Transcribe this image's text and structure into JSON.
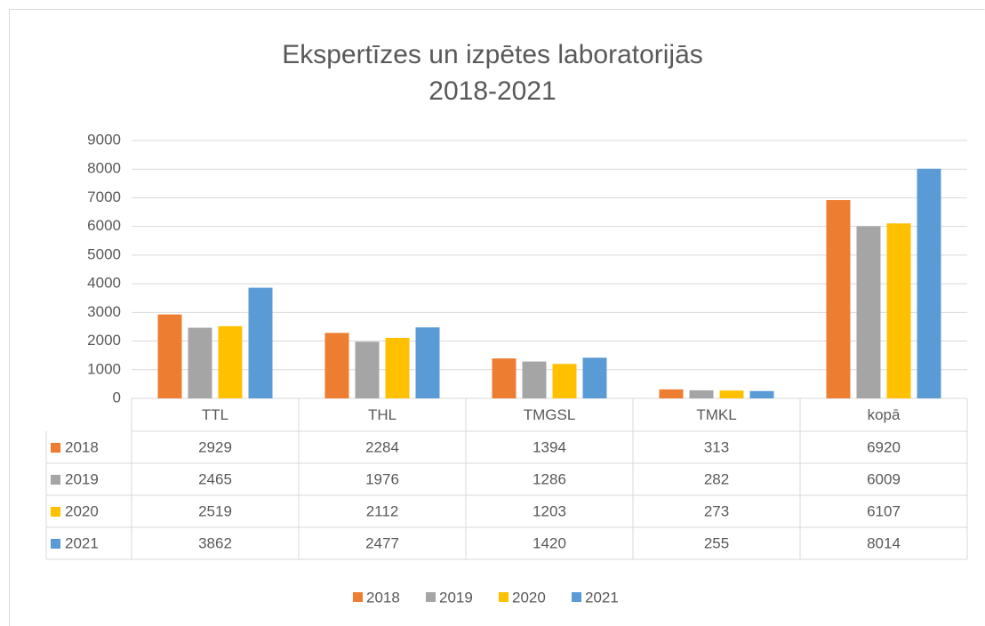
{
  "chart_data": {
    "type": "bar",
    "title": [
      "Ekspertīzes un izpētes laboratorijās",
      "2018-2021"
    ],
    "categories": [
      "TTL",
      "THL",
      "TMGSL",
      "TMKL",
      "kopā"
    ],
    "series": [
      {
        "name": "2018",
        "color": "#ed7d31",
        "values": [
          2929,
          2284,
          1394,
          313,
          6920
        ]
      },
      {
        "name": "2019",
        "color": "#a5a5a5",
        "values": [
          2465,
          1976,
          1286,
          282,
          6009
        ]
      },
      {
        "name": "2020",
        "color": "#ffc000",
        "values": [
          2519,
          2112,
          1203,
          273,
          6107
        ]
      },
      {
        "name": "2021",
        "color": "#5b9bd5",
        "values": [
          3862,
          2477,
          1420,
          255,
          8014
        ]
      }
    ],
    "ylim": [
      0,
      9000
    ],
    "yticks": [
      0,
      1000,
      2000,
      3000,
      4000,
      5000,
      6000,
      7000,
      8000,
      9000
    ],
    "grid": true,
    "legend": "bottom",
    "data_table": true
  }
}
